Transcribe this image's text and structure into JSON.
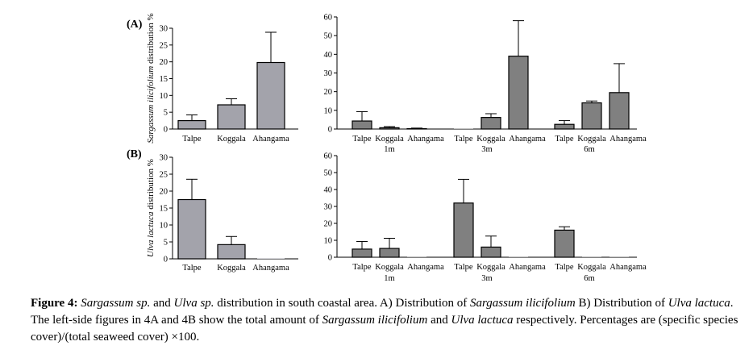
{
  "colors": {
    "bar_light": "#a3a3ab",
    "bar_dark": "#808080",
    "stroke": "#000000"
  },
  "chart_data": [
    {
      "panel": "(A)",
      "type": "bar",
      "ylabel_italic": "Sargassum ilicifolium",
      "ylabel_plain": " distribution %",
      "ylim": [
        0,
        30
      ],
      "yticks": [
        0,
        5,
        10,
        15,
        20,
        25,
        30
      ],
      "categories": [
        "Talpe",
        "Koggala",
        "Ahangama"
      ],
      "values": [
        2.5,
        7.2,
        19.8
      ],
      "errors": [
        1.7,
        1.8,
        9.0
      ],
      "color": "bar_light"
    },
    {
      "panel": "",
      "type": "bar",
      "ylim": [
        0,
        60
      ],
      "yticks": [
        0,
        10,
        20,
        30,
        40,
        50,
        60
      ],
      "groups": [
        "1m",
        "3m",
        "6m"
      ],
      "categories": [
        "Talpe",
        "Koggala",
        "Ahangama",
        "Talpe",
        "Koggala",
        "Ahangama",
        "Talpe",
        "Koggala",
        "Ahangama"
      ],
      "values": [
        4.3,
        0.7,
        0.2,
        0.0,
        6.2,
        39.0,
        2.5,
        14.0,
        19.5
      ],
      "errors": [
        5.0,
        0.6,
        0.3,
        0.0,
        2.0,
        19.0,
        2.0,
        1.0,
        15.5
      ],
      "color": "bar_dark"
    },
    {
      "panel": "(B)",
      "type": "bar",
      "ylabel_italic": "Ulva lactuca",
      "ylabel_plain": " distribution %",
      "ylim": [
        0,
        30
      ],
      "yticks": [
        0,
        5,
        10,
        15,
        20,
        25,
        30
      ],
      "categories": [
        "Talpe",
        "Koggala",
        "Ahangama"
      ],
      "values": [
        17.5,
        4.2,
        0.0
      ],
      "errors": [
        6.0,
        2.4,
        0.0
      ],
      "color": "bar_light"
    },
    {
      "panel": "",
      "type": "bar",
      "ylim": [
        0,
        60
      ],
      "yticks": [
        0,
        10,
        20,
        30,
        40,
        50,
        60
      ],
      "groups": [
        "1m",
        "3m",
        "6m"
      ],
      "categories": [
        "Talpe",
        "Koggala",
        "Ahangama",
        "Talpe",
        "Koggala",
        "Ahangama",
        "Talpe",
        "Koggala",
        "Ahangama"
      ],
      "values": [
        4.8,
        5.2,
        0.0,
        32.0,
        6.0,
        0.0,
        16.0,
        0.0,
        0.0
      ],
      "errors": [
        4.5,
        6.0,
        0.0,
        14.0,
        6.5,
        0.0,
        2.0,
        0.0,
        0.0
      ],
      "color": "bar_dark"
    }
  ],
  "caption": {
    "label": "Figure 4:",
    "segments": [
      {
        "text": " ",
        "italic": false
      },
      {
        "text": "Sargassum sp.",
        "italic": true
      },
      {
        "text": " and ",
        "italic": false
      },
      {
        "text": "Ulva sp.",
        "italic": true
      },
      {
        "text": " distribution in south coastal area. A) Distribution of ",
        "italic": false
      },
      {
        "text": "Sargassum ilicifolium",
        "italic": true
      },
      {
        "text": " B) Distribution of ",
        "italic": false
      },
      {
        "text": "Ulva lactuca",
        "italic": true
      },
      {
        "text": ". The left-side figures in 4A and 4B show the total amount of ",
        "italic": false
      },
      {
        "text": "Sargassum ilicifolium",
        "italic": true
      },
      {
        "text": " and ",
        "italic": false
      },
      {
        "text": "Ulva lactuca",
        "italic": true
      },
      {
        "text": " respectively. Percentages are (specific species cover)/(total seaweed cover) ×100.",
        "italic": false
      }
    ]
  }
}
